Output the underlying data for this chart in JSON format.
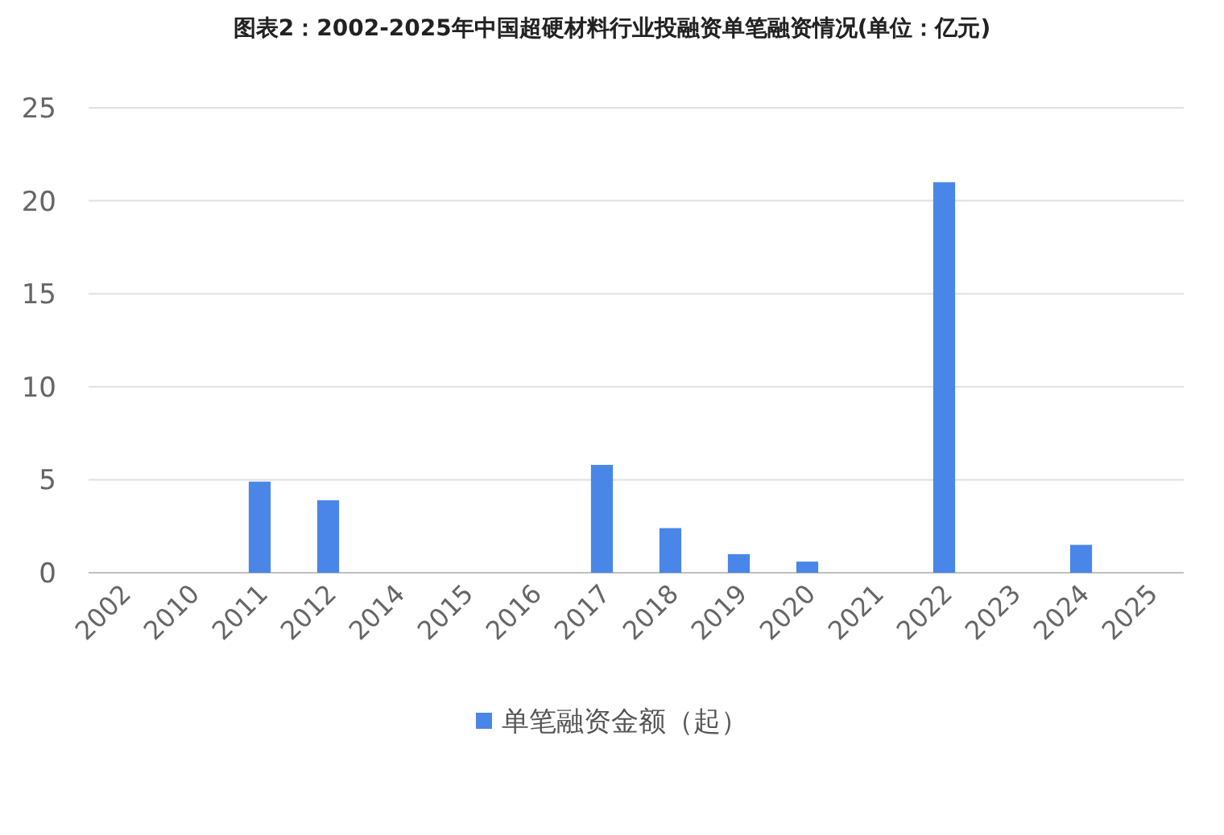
{
  "chart_data": {
    "type": "bar",
    "title": "图表2：2002-2025年中国超硬材料行业投融资单笔融资情况(单位：亿元)",
    "categories": [
      "2002",
      "2010",
      "2011",
      "2012",
      "2014",
      "2015",
      "2016",
      "2017",
      "2018",
      "2019",
      "2020",
      "2021",
      "2022",
      "2023",
      "2024",
      "2025"
    ],
    "series": [
      {
        "name": "单笔融资金额（起）",
        "color": "#4a86e8",
        "values": [
          0,
          0,
          4.9,
          3.9,
          0,
          0,
          0,
          5.8,
          2.4,
          1.0,
          0.6,
          0,
          21.0,
          0,
          1.5,
          0
        ]
      }
    ],
    "ylim": [
      0,
      25
    ],
    "yticks": [
      0,
      5,
      10,
      15,
      20,
      25
    ],
    "grid": "y",
    "legend": "bottom"
  }
}
